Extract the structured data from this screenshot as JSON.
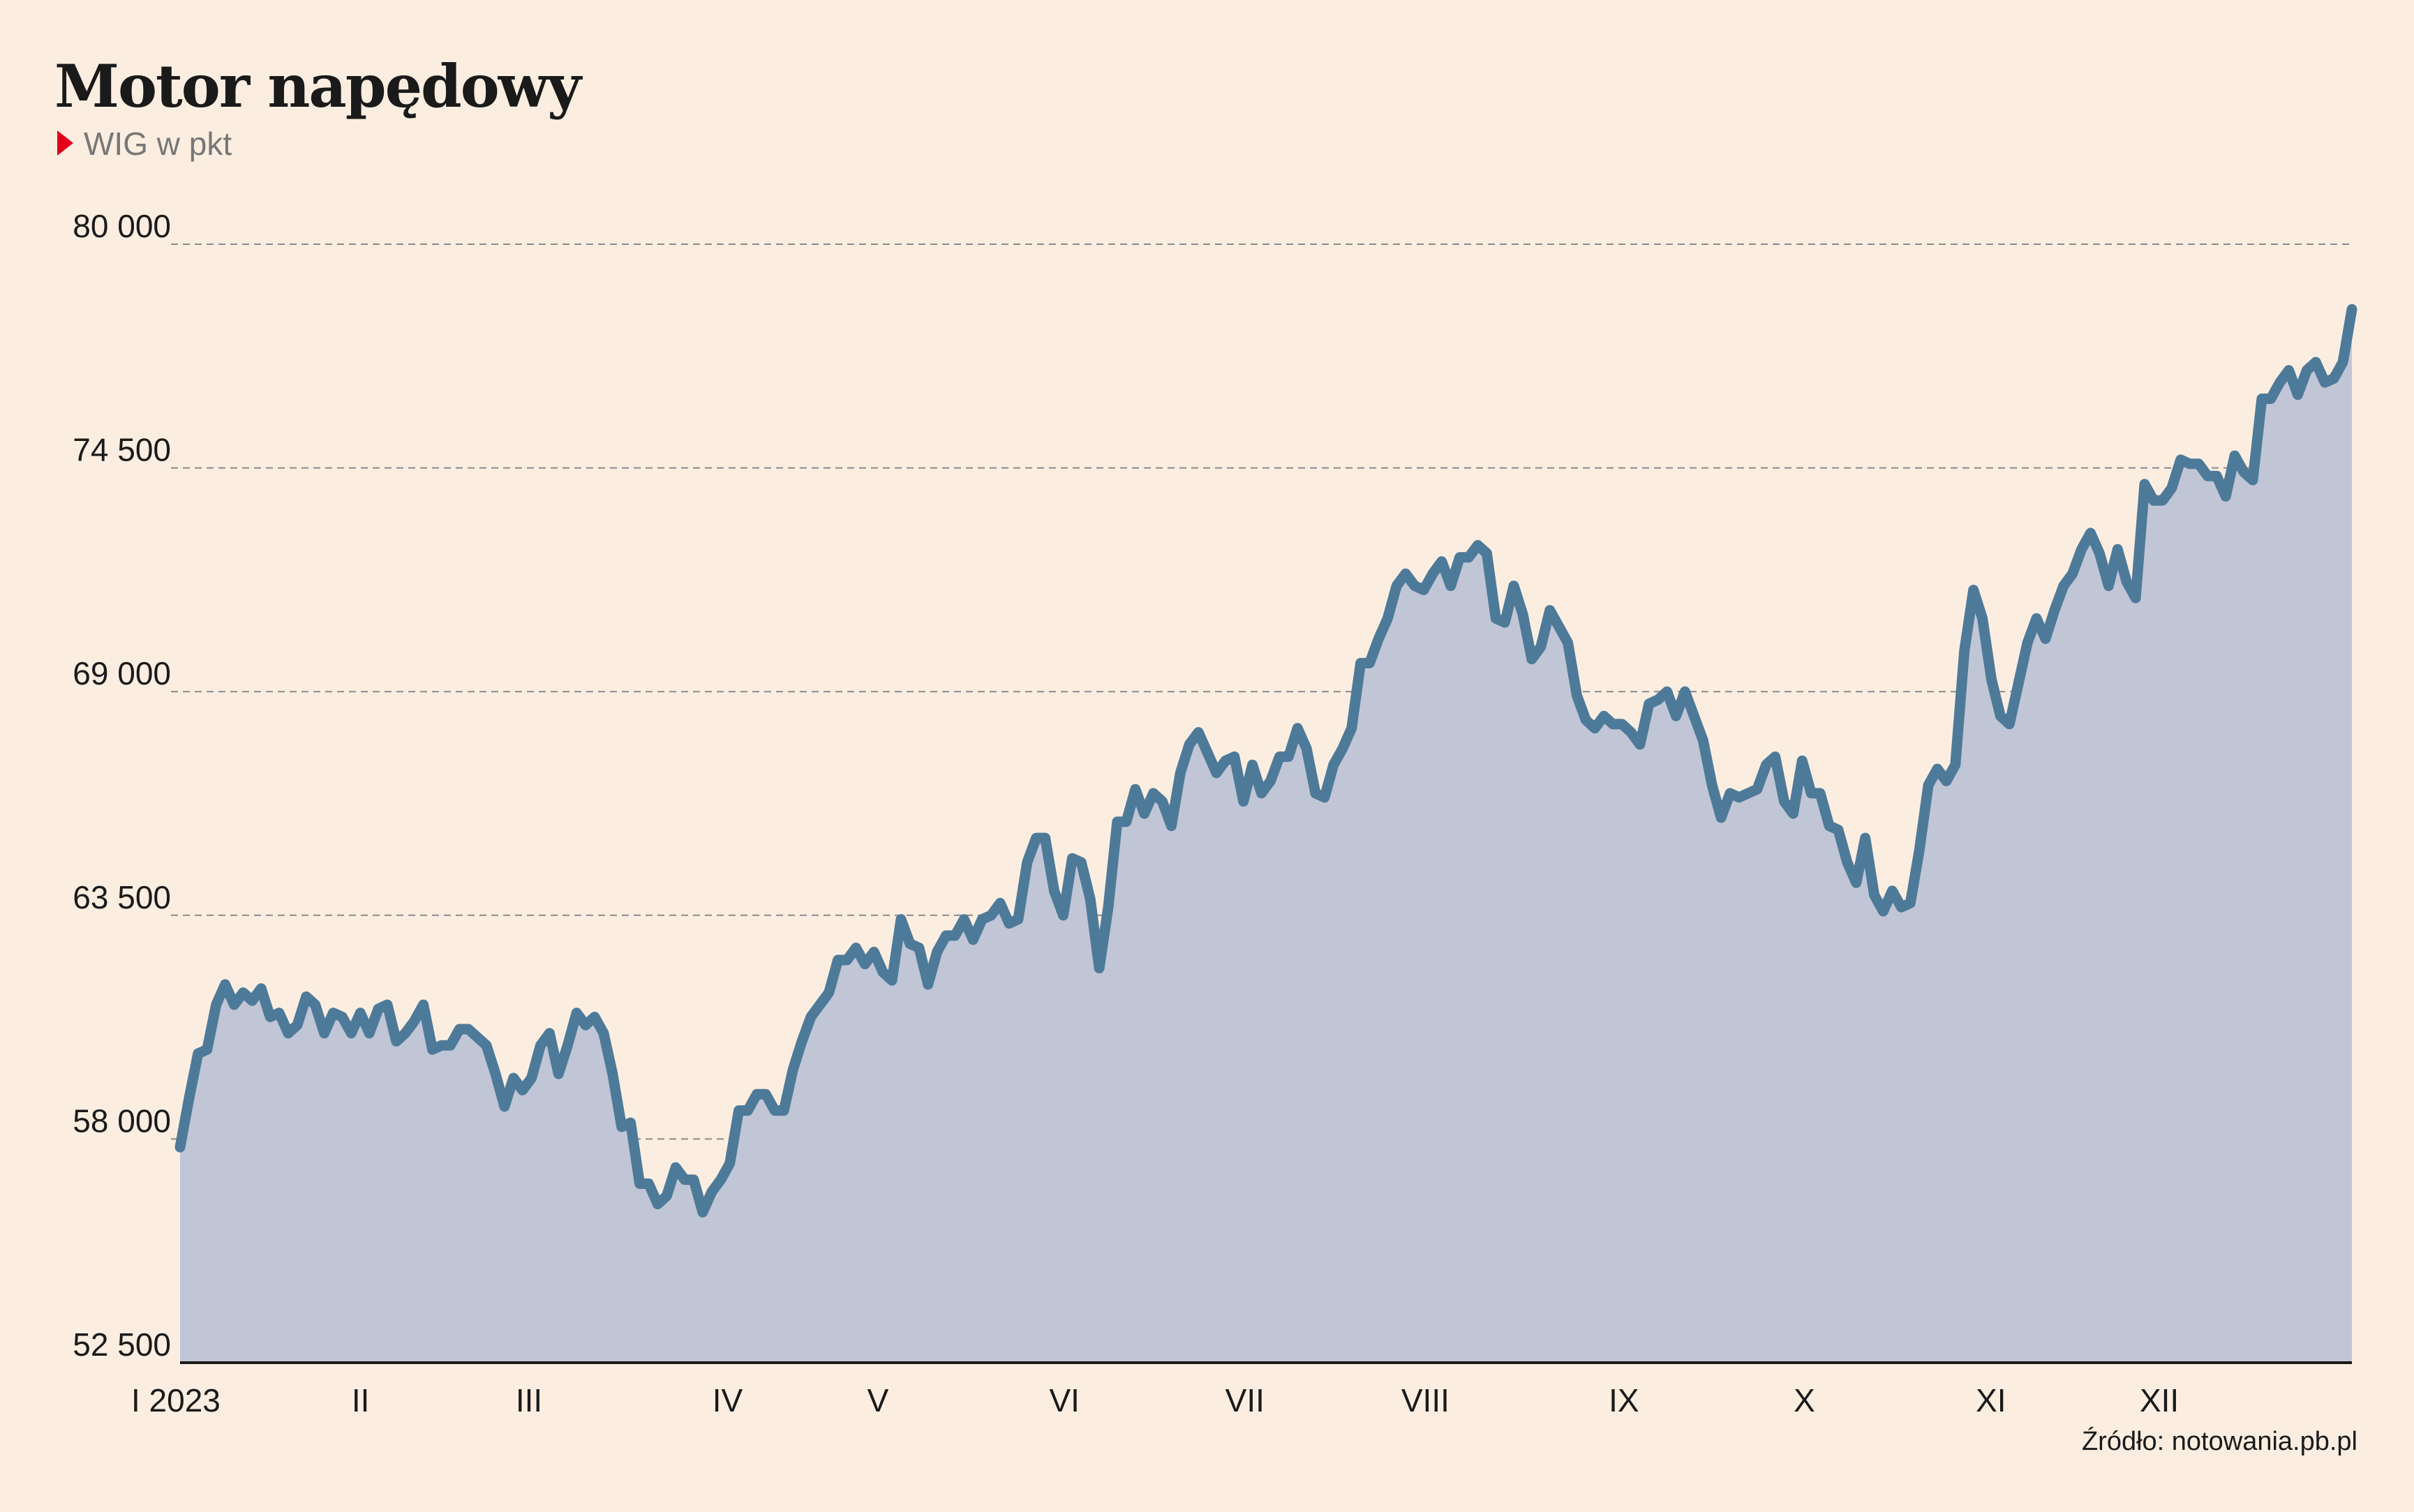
{
  "title": "Motor napędowy",
  "subtitle": "WIG w pkt",
  "source": "Źródło: notowania.pb.pl",
  "colors": {
    "background": "#FBEEE1",
    "area": "#C0C6D6",
    "line": "#4E7A99",
    "grid": "#8A8A8A",
    "axis": "#1A1A1A",
    "marker": "#E3001B",
    "subtitle": "#777777",
    "text": "#1A1A1A"
  },
  "chart_data": {
    "type": "area",
    "ylim": [
      52500,
      80000
    ],
    "yticks": [
      80000,
      74500,
      69000,
      63500,
      58000,
      52500
    ],
    "ytick_labels": [
      "80 000",
      "74 500",
      "69 000",
      "63 500",
      "58 000",
      "52 500"
    ],
    "grid": "horizontal dashed",
    "x_start": "2023-01-02",
    "x_end": "2023-12-29",
    "xtick_labels": [
      {
        "label": "I 2023",
        "date": "2023-01-02"
      },
      {
        "label": "II",
        "date": "2023-02-01"
      },
      {
        "label": "III",
        "date": "2023-03-01"
      },
      {
        "label": "IV",
        "date": "2023-04-03"
      },
      {
        "label": "V",
        "date": "2023-04-28"
      },
      {
        "label": "VI",
        "date": "2023-05-29"
      },
      {
        "label": "VII",
        "date": "2023-06-28"
      },
      {
        "label": "VIII",
        "date": "2023-07-28"
      },
      {
        "label": "IX",
        "date": "2023-08-30"
      },
      {
        "label": "X",
        "date": "2023-09-29"
      },
      {
        "label": "XI",
        "date": "2023-10-30"
      },
      {
        "label": "XII",
        "date": "2023-11-27"
      }
    ],
    "series": [
      {
        "values": [
          [
            0,
            57800
          ],
          [
            1,
            59000
          ],
          [
            2,
            60100
          ],
          [
            3,
            60200
          ],
          [
            4,
            61300
          ],
          [
            5,
            61800
          ],
          [
            6,
            61300
          ],
          [
            7,
            61600
          ],
          [
            8,
            61400
          ],
          [
            9,
            61700
          ],
          [
            10,
            61000
          ],
          [
            11,
            61100
          ],
          [
            12,
            60600
          ],
          [
            13,
            60800
          ],
          [
            14,
            61500
          ],
          [
            15,
            61300
          ],
          [
            16,
            60600
          ],
          [
            17,
            61100
          ],
          [
            18,
            61000
          ],
          [
            19,
            60600
          ],
          [
            20,
            61100
          ],
          [
            21,
            60600
          ],
          [
            22,
            61200
          ],
          [
            23,
            61300
          ],
          [
            24,
            60400
          ],
          [
            25,
            60600
          ],
          [
            26,
            60900
          ],
          [
            27,
            61300
          ],
          [
            28,
            60200
          ],
          [
            29,
            60300
          ],
          [
            30,
            60300
          ],
          [
            31,
            60700
          ],
          [
            32,
            60700
          ],
          [
            33,
            60500
          ],
          [
            34,
            60300
          ],
          [
            35,
            59600
          ],
          [
            36,
            58800
          ],
          [
            37,
            59500
          ],
          [
            38,
            59200
          ],
          [
            39,
            59500
          ],
          [
            40,
            60300
          ],
          [
            41,
            60600
          ],
          [
            42,
            59600
          ],
          [
            43,
            60300
          ],
          [
            44,
            61100
          ],
          [
            45,
            60800
          ],
          [
            46,
            61000
          ],
          [
            47,
            60600
          ],
          [
            48,
            59600
          ],
          [
            49,
            58300
          ],
          [
            50,
            58400
          ],
          [
            51,
            56900
          ],
          [
            52,
            56900
          ],
          [
            53,
            56400
          ],
          [
            54,
            56600
          ],
          [
            55,
            57300
          ],
          [
            56,
            57000
          ],
          [
            57,
            57000
          ],
          [
            58,
            56200
          ],
          [
            59,
            56700
          ],
          [
            60,
            57000
          ],
          [
            61,
            57400
          ],
          [
            62,
            58700
          ],
          [
            63,
            58700
          ],
          [
            64,
            59100
          ],
          [
            65,
            59100
          ],
          [
            66,
            58700
          ],
          [
            67,
            58700
          ],
          [
            68,
            59700
          ],
          [
            69,
            60400
          ],
          [
            70,
            61000
          ],
          [
            71,
            61300
          ],
          [
            72,
            61600
          ],
          [
            73,
            62400
          ],
          [
            74,
            62400
          ],
          [
            75,
            62700
          ],
          [
            76,
            62300
          ],
          [
            77,
            62600
          ],
          [
            78,
            62100
          ],
          [
            79,
            61900
          ],
          [
            80,
            63400
          ],
          [
            81,
            62800
          ],
          [
            82,
            62700
          ],
          [
            83,
            61800
          ],
          [
            84,
            62600
          ],
          [
            85,
            63000
          ],
          [
            86,
            63000
          ],
          [
            87,
            63400
          ],
          [
            88,
            62900
          ],
          [
            89,
            63400
          ],
          [
            90,
            63500
          ],
          [
            91,
            63800
          ],
          [
            92,
            63300
          ],
          [
            93,
            63400
          ],
          [
            94,
            64800
          ],
          [
            95,
            65400
          ],
          [
            96,
            65400
          ],
          [
            97,
            64100
          ],
          [
            98,
            63500
          ],
          [
            99,
            64900
          ],
          [
            100,
            64800
          ],
          [
            101,
            63900
          ],
          [
            102,
            62200
          ],
          [
            103,
            63700
          ],
          [
            104,
            65800
          ],
          [
            105,
            65800
          ],
          [
            106,
            66600
          ],
          [
            107,
            66000
          ],
          [
            108,
            66500
          ],
          [
            109,
            66300
          ],
          [
            110,
            65700
          ],
          [
            111,
            67000
          ],
          [
            112,
            67700
          ],
          [
            113,
            68000
          ],
          [
            114,
            67500
          ],
          [
            115,
            67000
          ],
          [
            116,
            67300
          ],
          [
            117,
            67400
          ],
          [
            118,
            66300
          ],
          [
            119,
            67200
          ],
          [
            120,
            66500
          ],
          [
            121,
            66800
          ],
          [
            122,
            67400
          ],
          [
            123,
            67400
          ],
          [
            124,
            68100
          ],
          [
            125,
            67600
          ],
          [
            126,
            66500
          ],
          [
            127,
            66400
          ],
          [
            128,
            67200
          ],
          [
            129,
            67600
          ],
          [
            130,
            68100
          ],
          [
            131,
            69700
          ],
          [
            132,
            69700
          ],
          [
            133,
            70300
          ],
          [
            134,
            70800
          ],
          [
            135,
            71600
          ],
          [
            136,
            71900
          ],
          [
            137,
            71600
          ],
          [
            138,
            71500
          ],
          [
            139,
            71900
          ],
          [
            140,
            72200
          ],
          [
            141,
            71600
          ],
          [
            142,
            72300
          ],
          [
            143,
            72300
          ],
          [
            144,
            72600
          ],
          [
            145,
            72400
          ],
          [
            146,
            70800
          ],
          [
            147,
            70700
          ],
          [
            148,
            71600
          ],
          [
            149,
            70900
          ],
          [
            150,
            69800
          ],
          [
            151,
            70100
          ],
          [
            152,
            71000
          ],
          [
            153,
            70600
          ],
          [
            154,
            70200
          ],
          [
            155,
            68900
          ],
          [
            156,
            68300
          ],
          [
            157,
            68100
          ],
          [
            158,
            68400
          ],
          [
            159,
            68200
          ],
          [
            160,
            68200
          ],
          [
            161,
            68000
          ],
          [
            162,
            67700
          ],
          [
            163,
            68700
          ],
          [
            164,
            68800
          ],
          [
            165,
            69000
          ],
          [
            166,
            68400
          ],
          [
            167,
            69000
          ],
          [
            168,
            68400
          ],
          [
            169,
            67800
          ],
          [
            170,
            66700
          ],
          [
            171,
            65900
          ],
          [
            172,
            66500
          ],
          [
            173,
            66400
          ],
          [
            174,
            66500
          ],
          [
            175,
            66600
          ],
          [
            176,
            67200
          ],
          [
            177,
            67400
          ],
          [
            178,
            66300
          ],
          [
            179,
            66000
          ],
          [
            180,
            67300
          ],
          [
            181,
            66500
          ],
          [
            182,
            66500
          ],
          [
            183,
            65700
          ],
          [
            184,
            65600
          ],
          [
            185,
            64800
          ],
          [
            186,
            64300
          ],
          [
            187,
            65400
          ],
          [
            188,
            64000
          ],
          [
            189,
            63600
          ],
          [
            190,
            64100
          ],
          [
            191,
            63700
          ],
          [
            192,
            63800
          ],
          [
            193,
            65100
          ],
          [
            194,
            66700
          ],
          [
            195,
            67100
          ],
          [
            196,
            66800
          ],
          [
            197,
            67200
          ],
          [
            198,
            70000
          ],
          [
            199,
            71500
          ],
          [
            200,
            70800
          ],
          [
            201,
            69300
          ],
          [
            202,
            68400
          ],
          [
            203,
            68200
          ],
          [
            204,
            69200
          ],
          [
            205,
            70200
          ],
          [
            206,
            70800
          ],
          [
            207,
            70300
          ],
          [
            208,
            71000
          ],
          [
            209,
            71600
          ],
          [
            210,
            71900
          ],
          [
            211,
            72500
          ],
          [
            212,
            72900
          ],
          [
            213,
            72400
          ],
          [
            214,
            71600
          ],
          [
            215,
            72500
          ],
          [
            216,
            71700
          ],
          [
            217,
            71300
          ],
          [
            218,
            74100
          ],
          [
            219,
            73700
          ],
          [
            220,
            73700
          ],
          [
            221,
            74000
          ],
          [
            222,
            74700
          ],
          [
            223,
            74600
          ],
          [
            224,
            74600
          ],
          [
            225,
            74300
          ],
          [
            226,
            74300
          ],
          [
            227,
            73800
          ],
          [
            228,
            74800
          ],
          [
            229,
            74400
          ],
          [
            230,
            74200
          ],
          [
            231,
            76200
          ],
          [
            232,
            76200
          ],
          [
            233,
            76600
          ],
          [
            234,
            76900
          ],
          [
            235,
            76300
          ],
          [
            236,
            76900
          ],
          [
            237,
            77100
          ],
          [
            238,
            76600
          ],
          [
            239,
            76700
          ],
          [
            240,
            77100
          ],
          [
            241,
            78400
          ]
        ]
      }
    ]
  }
}
